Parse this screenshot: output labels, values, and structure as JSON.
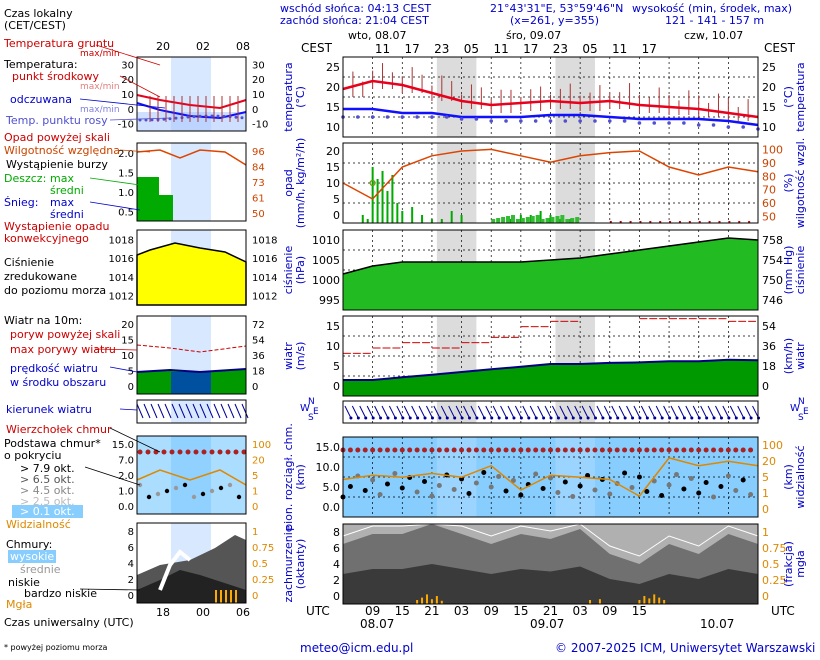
{
  "header": {
    "sunrise": "wschód słońca: 04:13 CEST",
    "sunset": "zachód słońca: 21:04 CEST",
    "coords": "21°43'31\"E, 53°59'46\"N",
    "grid": "(x=261,  y=355)",
    "elev_title": "wysokość (min, środek, max)",
    "elev_values": "121 - 141 - 157 m"
  },
  "days": [
    "wto, 08.07",
    "śro, 09.07",
    "czw, 10.07"
  ],
  "cest_label": "CEST",
  "utc_label": "UTC",
  "top_hours": [
    "11",
    "17",
    "23",
    "05",
    "11",
    "17",
    "23",
    "05",
    "11",
    "17"
  ],
  "bottom_hours": [
    "09",
    "15",
    "21",
    "03",
    "09",
    "15",
    "21",
    "03",
    "09",
    "15"
  ],
  "bottom_days": [
    "08.07",
    "09.07",
    "10.07"
  ],
  "legend": {
    "time_local": "Czas lokalny",
    "time_local2": "(CET/CEST)",
    "legend_hours_top": [
      "20",
      "02",
      "08"
    ],
    "legend_hours_bottom": [
      "18",
      "00",
      "06"
    ],
    "soil_temp": "Temperatura gruntu",
    "maxmin": "max/min",
    "temperature": "Temperatura:",
    "dew_mid": "punkt środkowy",
    "maxmin2": "max/min",
    "perceived": "odczuwana",
    "maxmin3": "max/min",
    "dew_point": "Temp. punktu rosy",
    "precip_over": "Opad powyżej skali",
    "humidity": "Wilgotność względna",
    "storm": "Wystąpienie burzy",
    "rain": "Deszcz:",
    "rain_max": "max",
    "rain_mid": "średni",
    "snow": "Śnieg:",
    "snow_max": "max",
    "snow_mid": "średni",
    "precip_occ": "Wystąpienie opadu",
    "convective": "konwekcyjnego",
    "pressure": "Ciśnienie",
    "pressure2": "zredukowane",
    "pressure3": "do poziomu morza",
    "wind_10m": "Wiatr na 10m:",
    "gust_over": "poryw powyżej skali",
    "max_gust": "max porywy wiatru",
    "wind_speed": "prędkość wiatru",
    "wind_area": "w środku obszaru",
    "wind_dir": "kierunek wiatru",
    "cloud_top": "Wierzchołek chmur",
    "cloud_base": "Podstawa chmur*",
    "coverage": "o pokryciu",
    "okt1": "> 7.9 okt.",
    "okt2": "> 6.5 okt.",
    "okt3": "> 4.5 okt.",
    "okt4": "> 2.5 okt.",
    "okt5": "> 0.1 okt.",
    "visibility": "Widzialność",
    "clouds": "Chmury:",
    "high": "wysokie",
    "medium": "średnie",
    "low": "niskie",
    "very_low": "bardzo niskie",
    "fog": "Mgła",
    "utc_time": "Czas uniwersalny (UTC)",
    "footnote": "* powyżej poziomu morza"
  },
  "axis_labels": {
    "temp_l": "temperatura",
    "temp_l2": "(°C)",
    "temp_r": "temperatura",
    "temp_r2": "(°C)",
    "precip_l": "opad",
    "precip_l2": "(mm/h, kg/m²/h)",
    "precip_r": "wilgotność wzgl.",
    "precip_r2": "(%)",
    "press_l": "ciśnienie",
    "press_l2": "(hPa)",
    "press_r": "ciśnienie",
    "press_r2": "(mm Hg)",
    "wind_l": "wiatr",
    "wind_l2": "(m/s)",
    "wind_r": "wiatr",
    "wind_r2": "(km/h)",
    "cloudb_l": "pion. rozciągł. chm.",
    "cloudb_l2": "(km)",
    "cloudb_r": "widzialność",
    "cloudb_r2": "(km)",
    "cover_l": "zachmurzenie",
    "cover_l2": "(oktanty)",
    "cover_r": "mgła",
    "cover_r2": "(frakcja)"
  },
  "ticks": {
    "temp": [
      "25",
      "20",
      "15",
      "10"
    ],
    "temp_r": [
      "25",
      "20",
      "15",
      "10"
    ],
    "precip_l": [
      "20",
      "15",
      "10",
      "5",
      "0"
    ],
    "precip_r": [
      "100",
      "90",
      "80",
      "70",
      "60",
      "50"
    ],
    "press_l": [
      "1010",
      "1005",
      "1000",
      "995"
    ],
    "press_r": [
      "758",
      "754",
      "750",
      "746"
    ],
    "wind_l": [
      "15",
      "10",
      "5",
      "0"
    ],
    "wind_r": [
      "54",
      "36",
      "18",
      "0"
    ],
    "cloudb_l": [
      "15.0",
      "10.0",
      "5.0",
      "0.0"
    ],
    "cloudb_r": [
      "100",
      "20",
      "5",
      "1",
      "0"
    ],
    "cover_l": [
      "8",
      "6",
      "4",
      "2",
      "0"
    ],
    "cover_r": [
      "1",
      "0.75",
      "0.5",
      "0.25",
      "0"
    ],
    "leg_temp_l": [
      "30",
      "20",
      "10",
      "0",
      "-10"
    ],
    "leg_temp_r": [
      "30",
      "20",
      "10",
      "0",
      "-10"
    ],
    "leg_precip_l": [
      "2.0",
      "1.5",
      "1.0",
      "0.5"
    ],
    "leg_precip_r": [
      "96",
      "84",
      "73",
      "61",
      "50"
    ],
    "leg_press_l": [
      "1018",
      "1016",
      "1014",
      "1012"
    ],
    "leg_press_r": [
      "1018",
      "1016",
      "1014",
      "1012"
    ],
    "leg_wind_l": [
      "20",
      "15",
      "10",
      "5",
      "0"
    ],
    "leg_wind_r": [
      "72",
      "54",
      "36",
      "18",
      "0"
    ],
    "leg_cloud_l": [
      "15.0",
      "7.0",
      "2.0",
      "1.0",
      "0.0"
    ],
    "leg_cloud_r": [
      "100",
      "20",
      "5",
      "1",
      "0"
    ],
    "leg_cover_l": [
      "8",
      "6",
      "4",
      "2",
      "0"
    ],
    "leg_cover_r": [
      "1",
      "0.75",
      "0.5",
      "0.25",
      "0"
    ]
  },
  "compass": {
    "n": "N",
    "w": "W",
    "e": "E",
    "s": "S"
  },
  "footer": {
    "email": "meteo@icm.edu.pl",
    "copyright": "© 2007-2025 ICM, Uniwersytet Warszawski"
  },
  "colors": {
    "temp_line": "#e8001c",
    "perceived_line": "#1010ff",
    "dew_points": "#5050d0",
    "humidity_line": "#dd4400",
    "rain": "#00aa00",
    "pressure_fill": "#22bb22",
    "wind_fill": "#009900",
    "night_band": "#dcdcdc",
    "cloud_bg": "#87ceff"
  },
  "chart_data": [
    {
      "type": "line",
      "panel": "temperature",
      "ylim": [
        8,
        28
      ],
      "hours_range": [
        0,
        84
      ],
      "series": [
        {
          "name": "Temperatura: punkt środkowy",
          "x": [
            0,
            6,
            12,
            18,
            24,
            30,
            36,
            42,
            48,
            54,
            60,
            66,
            72,
            78,
            84
          ],
          "values": [
            20,
            22,
            21,
            19,
            17,
            16,
            16.5,
            17,
            16.5,
            17,
            16,
            15.5,
            15,
            14,
            13
          ]
        },
        {
          "name": "Temperatura: odczuwana",
          "x": [
            0,
            6,
            12,
            18,
            24,
            30,
            36,
            42,
            48,
            54,
            60,
            66,
            72,
            78,
            84
          ],
          "values": [
            15,
            15,
            14,
            14,
            13,
            13,
            13,
            13.5,
            13.5,
            13,
            12.5,
            12.5,
            12.5,
            12,
            11
          ]
        },
        {
          "name": "Temp. punktu rosy",
          "x": [
            0,
            6,
            12,
            18,
            24,
            30,
            36,
            42,
            48,
            54,
            60,
            66,
            72,
            78,
            84
          ],
          "values": [
            13,
            13,
            13,
            13,
            12.5,
            12,
            12,
            12,
            12,
            12,
            11.5,
            11.5,
            11,
            10.5,
            10
          ]
        }
      ]
    },
    {
      "type": "bar",
      "panel": "precipitation",
      "ylim": [
        0,
        20
      ],
      "hours_range": [
        0,
        84
      ],
      "x": [
        4,
        5,
        6,
        7,
        8,
        9,
        10,
        11,
        12,
        14,
        16,
        18,
        20,
        22,
        24,
        34,
        36,
        38,
        40,
        42,
        44,
        46
      ],
      "values": [
        2,
        1,
        14,
        11,
        13,
        8,
        12,
        5,
        3,
        4,
        2,
        1,
        1,
        3,
        2,
        1,
        2,
        2,
        3,
        2,
        1,
        1
      ],
      "humidity": {
        "name": "Wilgotność względna",
        "ylim": [
          50,
          100
        ],
        "x": [
          0,
          6,
          12,
          18,
          24,
          30,
          36,
          42,
          48,
          54,
          60,
          66,
          72,
          78,
          84
        ],
        "values": [
          75,
          65,
          85,
          92,
          95,
          96,
          92,
          88,
          92,
          94,
          95,
          85,
          80,
          85,
          82
        ]
      }
    },
    {
      "type": "area",
      "panel": "pressure",
      "ylim": [
        995,
        1015
      ],
      "hours_range": [
        0,
        84
      ],
      "x": [
        0,
        6,
        12,
        18,
        24,
        30,
        36,
        42,
        48,
        54,
        60,
        66,
        72,
        78,
        84
      ],
      "values": [
        1004,
        1006,
        1007,
        1007,
        1007,
        1007,
        1007,
        1007.5,
        1008,
        1009,
        1010,
        1011,
        1012,
        1013,
        1012.5
      ]
    },
    {
      "type": "area",
      "panel": "wind",
      "ylim": [
        0,
        15
      ],
      "hours_range": [
        0,
        84
      ],
      "x": [
        0,
        6,
        12,
        18,
        24,
        30,
        36,
        42,
        48,
        54,
        60,
        66,
        72,
        78,
        84
      ],
      "values": [
        3,
        3,
        3.5,
        4,
        4.5,
        5,
        5.5,
        6,
        6,
        6.2,
        6.3,
        6.5,
        6.5,
        6.8,
        6.7
      ],
      "gusts": {
        "name": "max porywy wiatru",
        "x": [
          0,
          6,
          12,
          18,
          24,
          30,
          36,
          42,
          48,
          54,
          60,
          66,
          72,
          78,
          84
        ],
        "values": [
          8,
          9,
          10,
          9,
          10,
          11,
          13,
          14,
          15,
          15,
          14.5,
          14.5,
          14.5,
          14,
          14.5
        ]
      }
    },
    {
      "type": "line",
      "panel": "visibility",
      "ylim": [
        0,
        100
      ],
      "hours_range": [
        0,
        84
      ],
      "x": [
        0,
        6,
        12,
        18,
        24,
        30,
        36,
        42,
        48,
        54,
        60,
        66,
        72,
        78,
        84
      ],
      "values": [
        6,
        8,
        7,
        9,
        7,
        15,
        3,
        8,
        7,
        6,
        2,
        25,
        15,
        20,
        15
      ]
    },
    {
      "type": "area",
      "panel": "cloud-cover",
      "ylim": [
        0,
        8
      ],
      "hours_range": [
        0,
        84
      ],
      "x": [
        0,
        6,
        12,
        18,
        24,
        30,
        36,
        42,
        48,
        54,
        60,
        66,
        72,
        78,
        84
      ],
      "values": [
        6,
        7,
        7,
        8,
        7,
        6,
        7,
        6.5,
        7.5,
        5,
        4,
        6,
        5,
        7,
        6
      ],
      "fog": {
        "name": "Mgła",
        "x": [
          15,
          16,
          17,
          18,
          19,
          20,
          50,
          52,
          60,
          61,
          62,
          63,
          64,
          65
        ],
        "values": [
          0.05,
          0.08,
          0.12,
          0.06,
          0.1,
          0.04,
          0.05,
          0.06,
          0.05,
          0.1,
          0.07,
          0.12,
          0.08,
          0.05
        ]
      }
    }
  ]
}
